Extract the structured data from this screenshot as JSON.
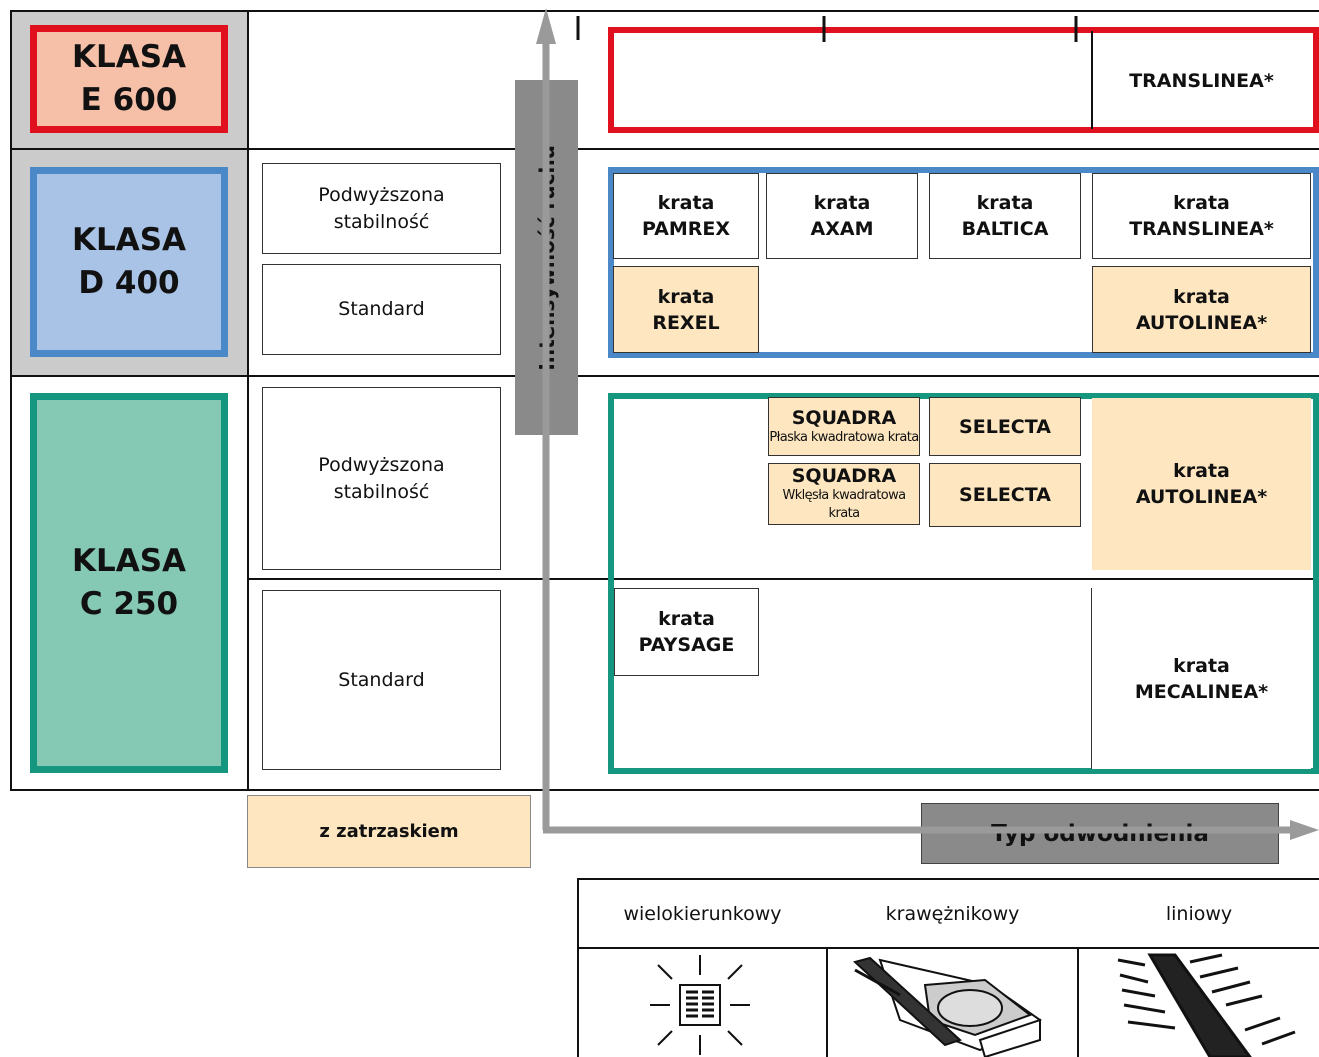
{
  "classes": [
    "KLASA\nE 600",
    "KLASA\nD 400",
    "KLASA\nC 250"
  ],
  "stability": [
    "Podwyższona\nstabilność",
    "Standard",
    "Podwyższona\nstabilność",
    "Standard"
  ],
  "axes": {
    "y": "Intensywność ruchu",
    "x": "Typ odwodnienia"
  },
  "legend": "z zatrzaskiem",
  "products": [
    "TRANSLINEA*",
    "krata\nPAMREX",
    "krata\nAXAM",
    "krata\nBALTICA",
    "krata\nTRANSLINEA*",
    "krata\nREXEL",
    "krata\nAUTOLINEA*",
    "SELECTA",
    "SELECTA",
    "krata\nAUTOLINEA*",
    "krata\nPAYSAGE",
    "krata\nMECALINEA*"
  ],
  "squadra": [
    {
      "name": "SQUADRA",
      "note": "Płaska kwadratowa krata"
    },
    {
      "name": "SQUADRA",
      "note": "Wklęsła kwadratowa krata"
    }
  ],
  "drain_types": [
    "wielokierunkowy",
    "krawężnikowy",
    "liniowy"
  ]
}
